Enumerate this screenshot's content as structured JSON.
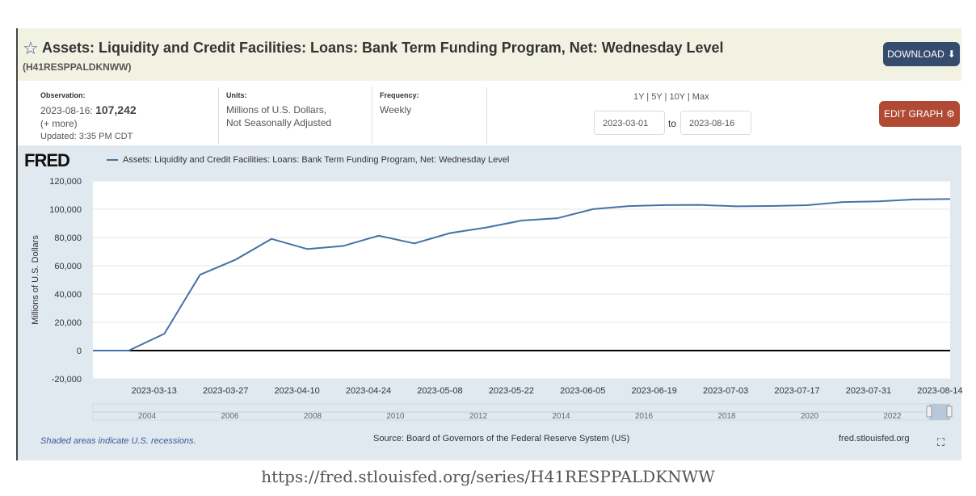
{
  "header": {
    "title": "Assets: Liquidity and Credit Facilities: Loans: Bank Term Funding Program, Net: Wednesday Level",
    "series_id": "(H41RESPPALDKNWW)",
    "download": "DOWNLOAD"
  },
  "meta": {
    "obs_label": "Observation:",
    "obs_date": "2023-08-16:",
    "obs_value": "107,242",
    "more": "(+ more)",
    "updated": "Updated: 3:35 PM CDT",
    "units_label": "Units:",
    "units1": "Millions of U.S. Dollars,",
    "units2": "Not Seasonally Adjusted",
    "freq_label": "Frequency:",
    "freq": "Weekly",
    "ranges": "1Y | 5Y | 10Y | Max",
    "start": "2023-03-01",
    "to": "to",
    "end": "2023-08-16",
    "edit": "EDIT GRAPH"
  },
  "graph": {
    "logo": "FRED",
    "note": "Shaded areas indicate U.S. recessions.",
    "source": "Source: Board of Governors of the Federal Reserve System (US)",
    "site": "fred.stlouisfed.org"
  },
  "url": "https://fred.stlouisfed.org/series/H41RESPPALDKNWW",
  "chart_data": {
    "type": "line",
    "title": "Assets: Liquidity and Credit Facilities: Loans: Bank Term Funding Program, Net: Wednesday Level",
    "ylabel": "Millions of U.S. Dollars",
    "ylim": [
      -20000,
      120000
    ],
    "yticks": [
      -20000,
      0,
      20000,
      40000,
      60000,
      80000,
      100000,
      120000
    ],
    "ytick_labels": [
      "-20,000",
      "0",
      "20,000",
      "40,000",
      "60,000",
      "80,000",
      "100,000",
      "120,000"
    ],
    "xticks": [
      "2023-03-13",
      "2023-03-27",
      "2023-04-10",
      "2023-04-24",
      "2023-05-08",
      "2023-05-22",
      "2023-06-05",
      "2023-06-19",
      "2023-07-03",
      "2023-07-17",
      "2023-07-31",
      "2023-08-14"
    ],
    "navigator_labels": [
      "2004",
      "2006",
      "2008",
      "2010",
      "2012",
      "2014",
      "2016",
      "2018",
      "2020",
      "2022"
    ],
    "legend": "Assets: Liquidity and Credit Facilities: Loans: Bank Term Funding Program, Net: Wednesday Level",
    "color": "#4572a7",
    "x": [
      "2023-03-01",
      "2023-03-08",
      "2023-03-15",
      "2023-03-22",
      "2023-03-29",
      "2023-04-05",
      "2023-04-12",
      "2023-04-19",
      "2023-04-26",
      "2023-05-03",
      "2023-05-10",
      "2023-05-17",
      "2023-05-24",
      "2023-05-31",
      "2023-06-07",
      "2023-06-14",
      "2023-06-21",
      "2023-06-28",
      "2023-07-05",
      "2023-07-12",
      "2023-07-19",
      "2023-07-26",
      "2023-08-02",
      "2023-08-09",
      "2023-08-16"
    ],
    "values": [
      0,
      0,
      11943,
      53669,
      64403,
      79021,
      71837,
      73985,
      81263,
      75815,
      83124,
      87001,
      91969,
      93622,
      100048,
      102238,
      102945,
      103086,
      102045,
      102302,
      102873,
      105093,
      105594,
      106943,
      107242
    ]
  }
}
